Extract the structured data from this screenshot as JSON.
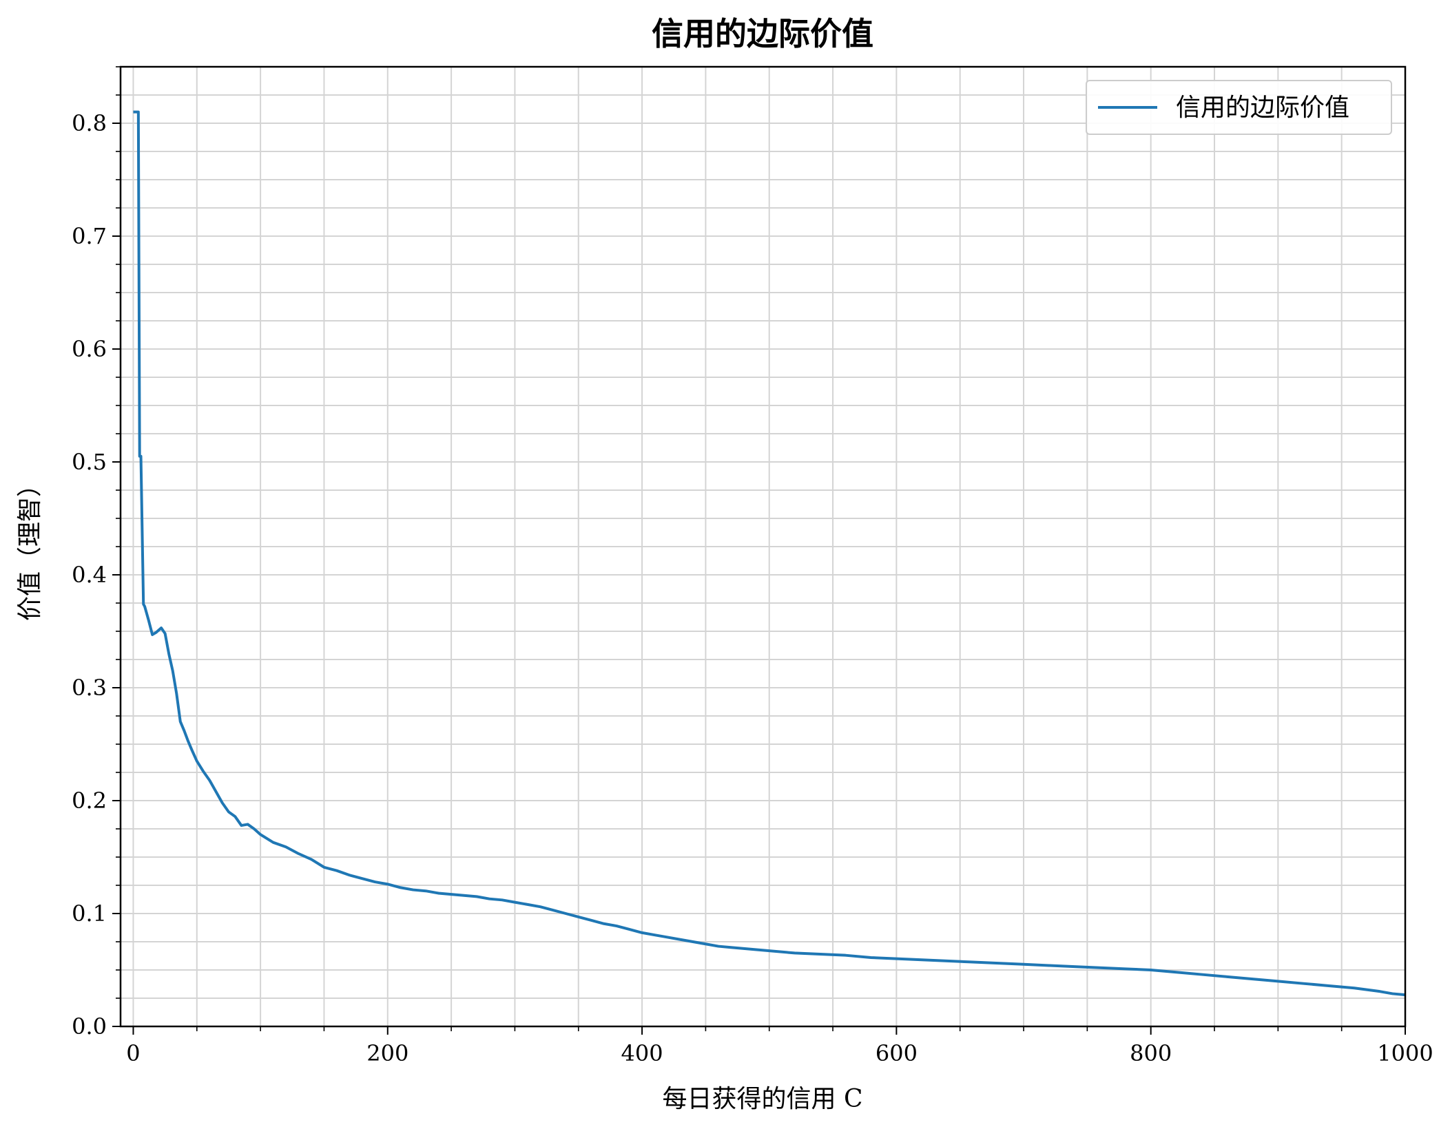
{
  "chart_data": {
    "type": "line",
    "title": "信用的边际价值",
    "xlabel": "每日获得的信用 C",
    "ylabel": "价值（理智）",
    "xlim": [
      -10,
      1000
    ],
    "ylim": [
      0,
      0.85
    ],
    "xticks": [
      0,
      200,
      400,
      600,
      800,
      1000
    ],
    "xtick_labels": [
      "0",
      "200",
      "400",
      "600",
      "800",
      "1000"
    ],
    "yticks": [
      0.0,
      0.1,
      0.2,
      0.3,
      0.4,
      0.5,
      0.6,
      0.7,
      0.8
    ],
    "ytick_labels": [
      "0.0",
      "0.1",
      "0.2",
      "0.3",
      "0.4",
      "0.5",
      "0.6",
      "0.7",
      "0.8"
    ],
    "grid": true,
    "legend_position": "top-right",
    "series": [
      {
        "name": "信用的边际价值",
        "color": "#1f77b4",
        "x": [
          0,
          2,
          4,
          5,
          6,
          8,
          9,
          12,
          15,
          18,
          22,
          25,
          28,
          31,
          34,
          37,
          40,
          43,
          46,
          50,
          55,
          60,
          65,
          70,
          75,
          80,
          85,
          90,
          95,
          100,
          110,
          120,
          130,
          140,
          150,
          160,
          170,
          180,
          190,
          200,
          210,
          220,
          230,
          240,
          250,
          260,
          270,
          280,
          290,
          300,
          310,
          320,
          330,
          340,
          350,
          360,
          370,
          380,
          390,
          400,
          410,
          420,
          430,
          440,
          450,
          460,
          470,
          480,
          490,
          500,
          520,
          540,
          560,
          580,
          600,
          620,
          640,
          660,
          680,
          700,
          720,
          740,
          760,
          780,
          800,
          820,
          840,
          860,
          880,
          900,
          920,
          940,
          960,
          980,
          990,
          1000
        ],
        "values": [
          0.81,
          0.81,
          0.81,
          0.505,
          0.505,
          0.374,
          0.372,
          0.36,
          0.347,
          0.349,
          0.353,
          0.348,
          0.33,
          0.315,
          0.295,
          0.27,
          0.262,
          0.253,
          0.245,
          0.235,
          0.226,
          0.218,
          0.208,
          0.198,
          0.19,
          0.186,
          0.178,
          0.179,
          0.175,
          0.17,
          0.163,
          0.159,
          0.153,
          0.148,
          0.141,
          0.138,
          0.134,
          0.131,
          0.128,
          0.126,
          0.123,
          0.121,
          0.12,
          0.118,
          0.117,
          0.116,
          0.115,
          0.113,
          0.112,
          0.11,
          0.108,
          0.106,
          0.103,
          0.1,
          0.097,
          0.094,
          0.091,
          0.089,
          0.086,
          0.083,
          0.081,
          0.079,
          0.077,
          0.075,
          0.073,
          0.071,
          0.07,
          0.069,
          0.068,
          0.067,
          0.065,
          0.064,
          0.063,
          0.061,
          0.06,
          0.059,
          0.058,
          0.057,
          0.056,
          0.055,
          0.054,
          0.053,
          0.052,
          0.051,
          0.05,
          0.048,
          0.046,
          0.044,
          0.042,
          0.04,
          0.038,
          0.036,
          0.034,
          0.031,
          0.029,
          0.028
        ]
      }
    ]
  }
}
